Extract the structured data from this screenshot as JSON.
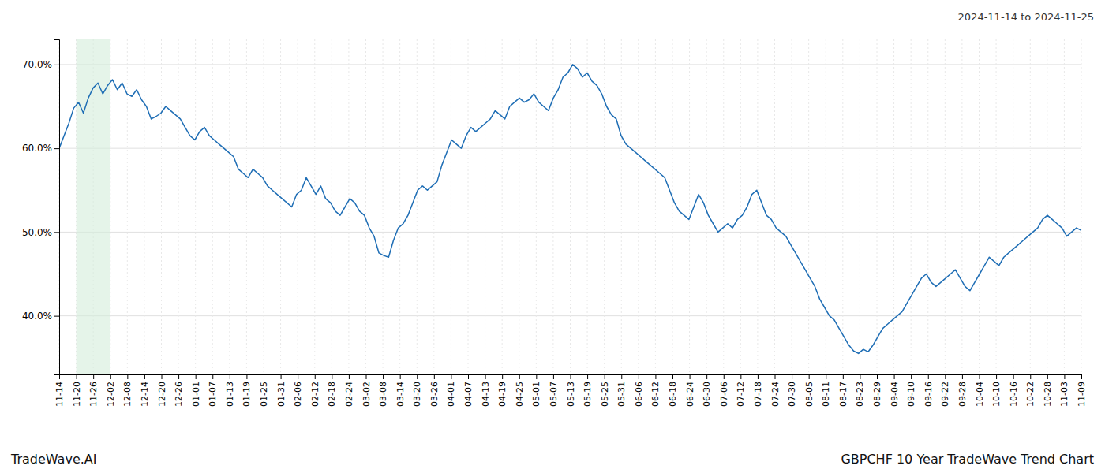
{
  "chart_data": {
    "type": "line",
    "title": "GBPCHF 10 Year TradeWave Trend Chart",
    "subtitle": "2024-11-14 to 2024-11-25",
    "annotations": [
      "TradeWave.AI"
    ],
    "color": "#1f6eb5",
    "grid": true,
    "highlight": {
      "start": 1,
      "end": 3,
      "color": "#d4edda"
    },
    "xlim": [
      0,
      60
    ],
    "xticks": [
      {
        "value": 0,
        "label": "11-14"
      },
      {
        "value": 1,
        "label": "11-20"
      },
      {
        "value": 2,
        "label": "11-26"
      },
      {
        "value": 3,
        "label": "12-02"
      },
      {
        "value": 4,
        "label": "12-08"
      },
      {
        "value": 5,
        "label": "12-14"
      },
      {
        "value": 6,
        "label": "12-20"
      },
      {
        "value": 7,
        "label": "12-26"
      },
      {
        "value": 8,
        "label": "01-01"
      },
      {
        "value": 9,
        "label": "01-07"
      },
      {
        "value": 10,
        "label": "01-13"
      },
      {
        "value": 11,
        "label": "01-19"
      },
      {
        "value": 12,
        "label": "01-25"
      },
      {
        "value": 13,
        "label": "01-31"
      },
      {
        "value": 14,
        "label": "02-06"
      },
      {
        "value": 15,
        "label": "02-12"
      },
      {
        "value": 16,
        "label": "02-18"
      },
      {
        "value": 17,
        "label": "02-24"
      },
      {
        "value": 18,
        "label": "03-02"
      },
      {
        "value": 19,
        "label": "03-08"
      },
      {
        "value": 20,
        "label": "03-14"
      },
      {
        "value": 21,
        "label": "03-20"
      },
      {
        "value": 22,
        "label": "03-26"
      },
      {
        "value": 23,
        "label": "04-01"
      },
      {
        "value": 24,
        "label": "04-07"
      },
      {
        "value": 25,
        "label": "04-13"
      },
      {
        "value": 26,
        "label": "04-19"
      },
      {
        "value": 27,
        "label": "04-25"
      },
      {
        "value": 28,
        "label": "05-01"
      },
      {
        "value": 29,
        "label": "05-07"
      },
      {
        "value": 30,
        "label": "05-13"
      },
      {
        "value": 31,
        "label": "05-19"
      },
      {
        "value": 32,
        "label": "05-25"
      },
      {
        "value": 33,
        "label": "05-31"
      },
      {
        "value": 34,
        "label": "06-06"
      },
      {
        "value": 35,
        "label": "06-12"
      },
      {
        "value": 36,
        "label": "06-18"
      },
      {
        "value": 37,
        "label": "06-24"
      },
      {
        "value": 38,
        "label": "06-30"
      },
      {
        "value": 39,
        "label": "07-06"
      },
      {
        "value": 40,
        "label": "07-12"
      },
      {
        "value": 41,
        "label": "07-18"
      },
      {
        "value": 42,
        "label": "07-24"
      },
      {
        "value": 43,
        "label": "07-30"
      },
      {
        "value": 44,
        "label": "08-05"
      },
      {
        "value": 45,
        "label": "08-11"
      },
      {
        "value": 46,
        "label": "08-17"
      },
      {
        "value": 47,
        "label": "08-23"
      },
      {
        "value": 48,
        "label": "08-29"
      },
      {
        "value": 49,
        "label": "09-04"
      },
      {
        "value": 50,
        "label": "09-10"
      },
      {
        "value": 51,
        "label": "09-16"
      },
      {
        "value": 52,
        "label": "09-22"
      },
      {
        "value": 53,
        "label": "09-28"
      },
      {
        "value": 54,
        "label": "10-04"
      },
      {
        "value": 55,
        "label": "10-10"
      },
      {
        "value": 56,
        "label": "10-16"
      },
      {
        "value": 57,
        "label": "10-22"
      },
      {
        "value": 58,
        "label": "10-28"
      },
      {
        "value": 59,
        "label": "11-03"
      },
      {
        "value": 60,
        "label": "11-09"
      }
    ],
    "ylim": [
      33,
      73
    ],
    "yticks": [
      {
        "value": 40,
        "label": "40.0%"
      },
      {
        "value": 50,
        "label": "50.0%"
      },
      {
        "value": 60,
        "label": "60.0%"
      },
      {
        "value": 70,
        "label": "70.0%"
      }
    ],
    "values": [
      60.0,
      61.5,
      63.0,
      64.8,
      65.5,
      64.2,
      66.0,
      67.2,
      67.8,
      66.5,
      67.5,
      68.2,
      67.0,
      67.8,
      66.5,
      66.2,
      67.0,
      65.8,
      65.0,
      63.5,
      63.8,
      64.2,
      65.0,
      64.5,
      64.0,
      63.5,
      62.5,
      61.5,
      61.0,
      62.0,
      62.5,
      61.5,
      61.0,
      60.5,
      60.0,
      59.5,
      59.0,
      57.5,
      57.0,
      56.5,
      57.5,
      57.0,
      56.5,
      55.5,
      55.0,
      54.5,
      54.0,
      53.5,
      53.0,
      54.5,
      55.0,
      56.5,
      55.5,
      54.5,
      55.5,
      54.0,
      53.5,
      52.5,
      52.0,
      53.0,
      54.0,
      53.5,
      52.5,
      52.0,
      50.5,
      49.5,
      47.5,
      47.2,
      47.0,
      49.0,
      50.5,
      51.0,
      52.0,
      53.5,
      55.0,
      55.5,
      55.0,
      55.5,
      56.0,
      58.0,
      59.5,
      61.0,
      60.5,
      60.0,
      61.5,
      62.5,
      62.0,
      62.5,
      63.0,
      63.5,
      64.5,
      64.0,
      63.5,
      65.0,
      65.5,
      66.0,
      65.5,
      65.8,
      66.5,
      65.5,
      65.0,
      64.5,
      66.0,
      67.0,
      68.5,
      69.0,
      70.0,
      69.5,
      68.5,
      69.0,
      68.0,
      67.5,
      66.5,
      65.0,
      64.0,
      63.5,
      61.5,
      60.5,
      60.0,
      59.5,
      59.0,
      58.5,
      58.0,
      57.5,
      57.0,
      56.5,
      55.0,
      53.5,
      52.5,
      52.0,
      51.5,
      53.0,
      54.5,
      53.5,
      52.0,
      51.0,
      50.0,
      50.5,
      51.0,
      50.5,
      51.5,
      52.0,
      53.0,
      54.5,
      55.0,
      53.5,
      52.0,
      51.5,
      50.5,
      50.0,
      49.5,
      48.5,
      47.5,
      46.5,
      45.5,
      44.5,
      43.5,
      42.0,
      41.0,
      40.0,
      39.5,
      38.5,
      37.5,
      36.5,
      35.8,
      35.5,
      36.0,
      35.7,
      36.5,
      37.5,
      38.5,
      39.0,
      39.5,
      40.0,
      40.5,
      41.5,
      42.5,
      43.5,
      44.5,
      45.0,
      44.0,
      43.5,
      44.0,
      44.5,
      45.0,
      45.5,
      44.5,
      43.5,
      43.0,
      44.0,
      45.0,
      46.0,
      47.0,
      46.5,
      46.0,
      47.0,
      47.5,
      48.0,
      48.5,
      49.0,
      49.5,
      50.0,
      50.5,
      51.5,
      52.0,
      51.5,
      51.0,
      50.5,
      49.5,
      50.0,
      50.5,
      50.2
    ]
  }
}
